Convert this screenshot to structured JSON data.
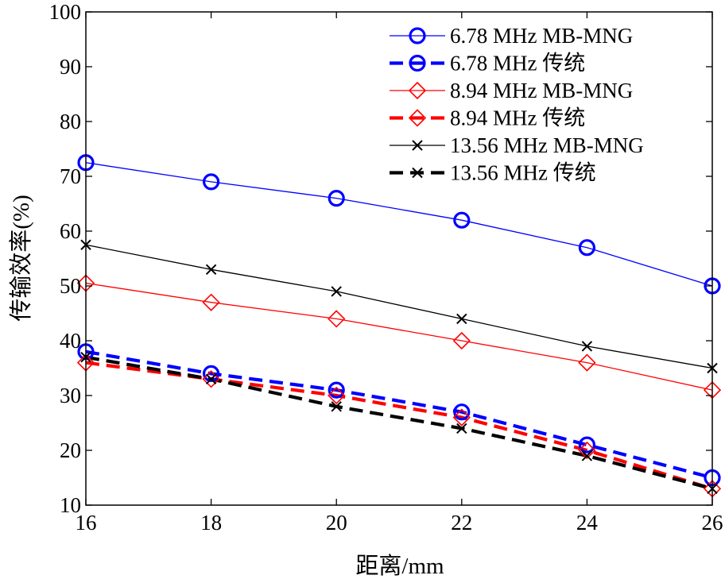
{
  "chart_data": {
    "type": "line",
    "title": "",
    "xlabel": "距离/mm",
    "ylabel": "传输效率(%)",
    "xlim": [
      16,
      26
    ],
    "ylim": [
      10,
      100
    ],
    "x": [
      16,
      18,
      20,
      22,
      24,
      26
    ],
    "xticks": [
      "16",
      "18",
      "20",
      "22",
      "24",
      "26"
    ],
    "yticks": [
      "10",
      "20",
      "30",
      "40",
      "50",
      "60",
      "70",
      "80",
      "90",
      "100"
    ],
    "grid": false,
    "legend_position": "top-right",
    "series": [
      {
        "name": "6.78 MHz MB-MNG",
        "values": [
          72.5,
          69,
          66,
          62,
          57,
          50
        ],
        "color": "#0000ff",
        "marker": "circle",
        "line": "solid"
      },
      {
        "name": "6.78 MHz 传统",
        "values": [
          38,
          34,
          31,
          27,
          21,
          15
        ],
        "color": "#0000ff",
        "marker": "circle",
        "line": "dashed"
      },
      {
        "name": "8.94 MHz MB-MNG",
        "values": [
          50.5,
          47,
          44,
          40,
          36,
          31
        ],
        "color": "#ff0000",
        "marker": "diamond",
        "line": "solid"
      },
      {
        "name": "8.94 MHz 传统",
        "values": [
          36,
          33,
          30,
          26,
          20,
          13
        ],
        "color": "#ff0000",
        "marker": "diamond",
        "line": "dashed"
      },
      {
        "name": "13.56 MHz MB-MNG",
        "values": [
          57.5,
          53,
          49,
          44,
          39,
          35
        ],
        "color": "#000000",
        "marker": "x",
        "line": "solid"
      },
      {
        "name": "13.56 MHz 传统",
        "values": [
          37,
          33,
          28,
          24,
          19,
          13
        ],
        "color": "#000000",
        "marker": "x",
        "line": "dashed"
      }
    ]
  }
}
